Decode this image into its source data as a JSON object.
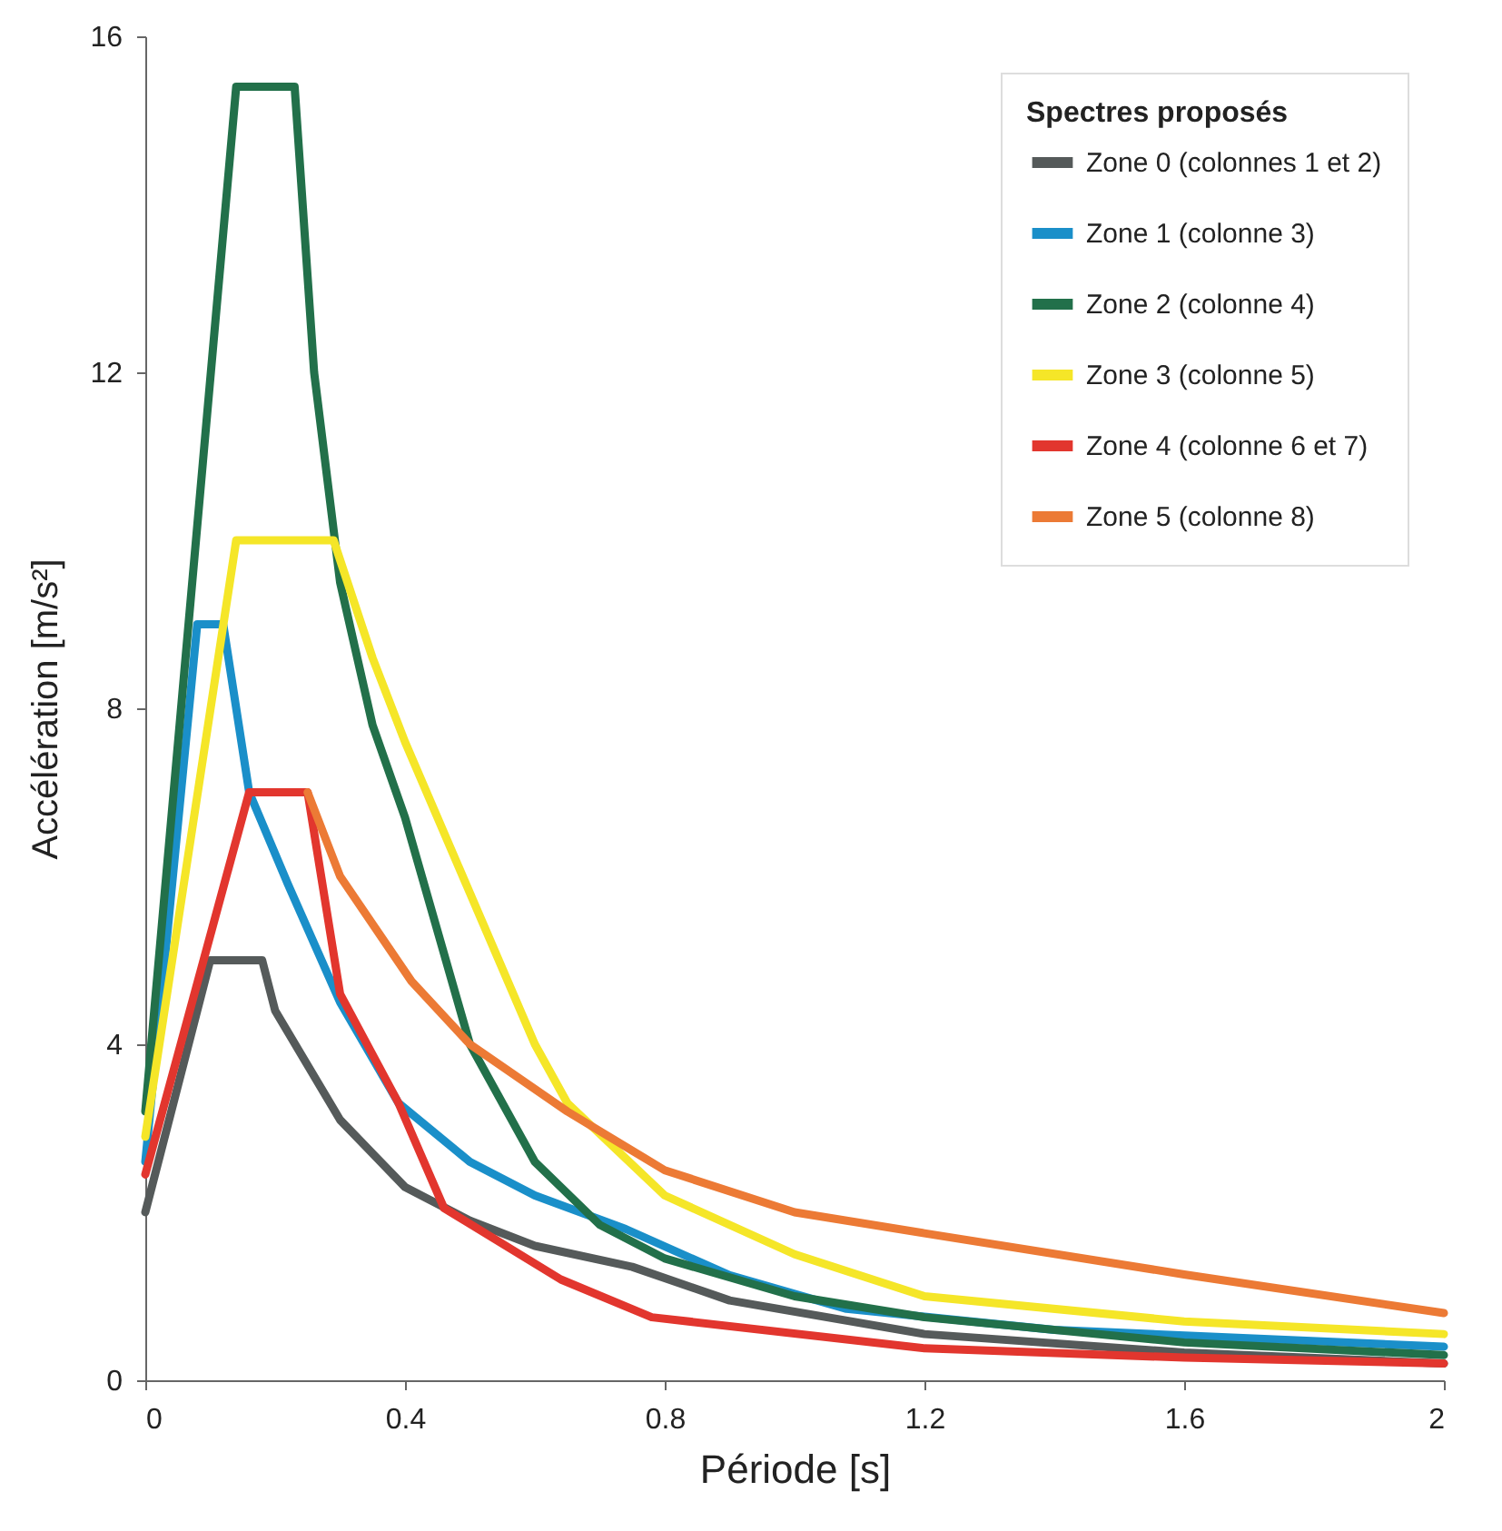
{
  "chart_data": {
    "type": "line",
    "xlabel": "Période [s]",
    "ylabel": "Accélération [m/s²]",
    "legend_title": "Spectres proposés",
    "legend": "top right",
    "xlim": [
      0,
      2
    ],
    "xticks": [
      0,
      0.4,
      0.8,
      1.2,
      1.6,
      2
    ],
    "ylim": [
      0,
      16
    ],
    "yticks": [
      0,
      4,
      8,
      12,
      16
    ],
    "grid": false,
    "line_style": "solid",
    "series": [
      {
        "name": "Zone 0 (colonnes 1 et 2)",
        "color": "#555a5a",
        "x": [
          0,
          0.1,
          0.18,
          0.2,
          0.3,
          0.4,
          0.5,
          0.6,
          0.75,
          0.9,
          1.2,
          1.6,
          2.0
        ],
        "values": [
          2.0,
          5.0,
          5.0,
          4.4,
          3.1,
          2.3,
          1.9,
          1.6,
          1.35,
          0.95,
          0.55,
          0.33,
          0.2
        ]
      },
      {
        "name": "Zone 1 (colonne 3)",
        "color": "#1a8fc9",
        "x": [
          0,
          0.08,
          0.12,
          0.16,
          0.22,
          0.3,
          0.39,
          0.5,
          0.6,
          0.74,
          0.9,
          1.08,
          1.4,
          2.0
        ],
        "values": [
          2.6,
          9.0,
          9.0,
          7.0,
          5.9,
          4.5,
          3.3,
          2.6,
          2.2,
          1.8,
          1.25,
          0.85,
          0.6,
          0.4
        ]
      },
      {
        "name": "Zone 2 (colonne 4)",
        "color": "#22704a",
        "x": [
          0,
          0.14,
          0.23,
          0.26,
          0.3,
          0.35,
          0.4,
          0.5,
          0.6,
          0.7,
          0.8,
          1.0,
          1.2,
          1.6,
          2.0
        ],
        "values": [
          3.2,
          15.4,
          15.4,
          12.0,
          9.5,
          7.8,
          6.7,
          4.0,
          2.6,
          1.85,
          1.45,
          1.0,
          0.75,
          0.45,
          0.3
        ]
      },
      {
        "name": "Zone 3 (colonne 5)",
        "color": "#f5e628",
        "x": [
          0,
          0.14,
          0.29,
          0.35,
          0.4,
          0.5,
          0.6,
          0.65,
          0.8,
          1.0,
          1.2,
          1.6,
          2.0
        ],
        "values": [
          2.9,
          10.0,
          10.0,
          8.6,
          7.6,
          5.8,
          4.0,
          3.3,
          2.2,
          1.5,
          1.0,
          0.7,
          0.55
        ]
      },
      {
        "name": "Zone 4 (colonne 6 et 7)",
        "color": "#e2362e",
        "x": [
          0,
          0.16,
          0.25,
          0.3,
          0.39,
          0.46,
          0.64,
          0.78,
          1.2,
          1.6,
          2.0
        ],
        "values": [
          2.45,
          7.0,
          7.0,
          4.6,
          3.3,
          2.05,
          1.2,
          0.75,
          0.38,
          0.27,
          0.2
        ]
      },
      {
        "name": "Zone 5 (colonne 8)",
        "color": "#ec7a35",
        "x": [
          0.25,
          0.3,
          0.41,
          0.5,
          0.65,
          0.8,
          1.0,
          1.2,
          1.6,
          2.0
        ],
        "values": [
          7.0,
          6.0,
          4.75,
          4.0,
          3.2,
          2.5,
          2.0,
          1.75,
          1.26,
          0.8
        ]
      }
    ]
  }
}
